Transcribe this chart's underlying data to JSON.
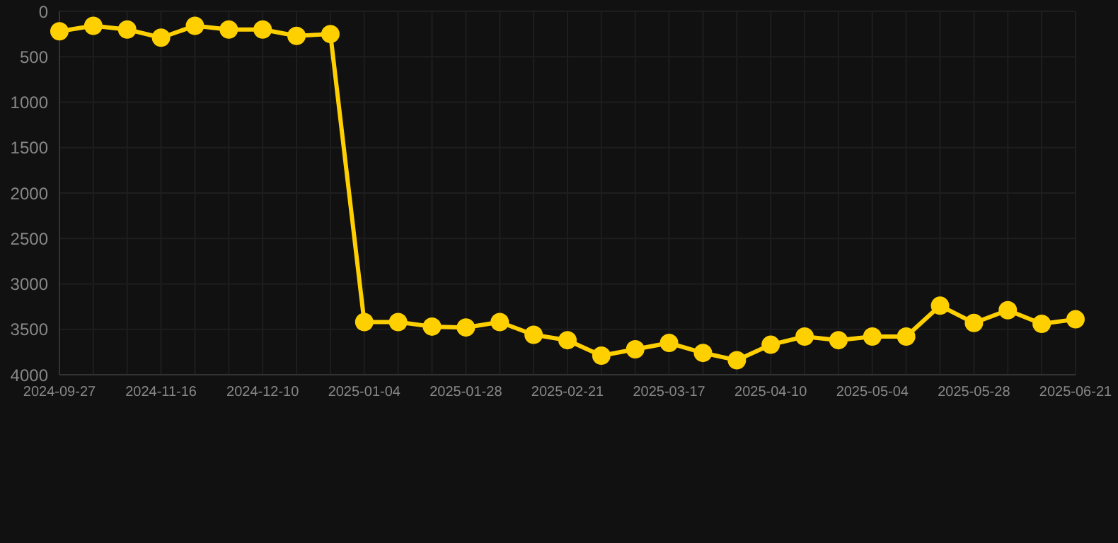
{
  "chart_data": {
    "type": "line",
    "categories": [
      "2024-09-27",
      null,
      null,
      "2024-11-16",
      null,
      null,
      "2024-12-10",
      null,
      null,
      "2025-01-04",
      null,
      null,
      "2025-01-28",
      null,
      null,
      "2025-02-21",
      null,
      null,
      "2025-03-17",
      null,
      null,
      "2025-04-10",
      null,
      null,
      "2025-05-04",
      null,
      null,
      "2025-05-28",
      null,
      null,
      "2025-06-21"
    ],
    "series": [
      {
        "color": "#ffd000",
        "values": [
          220,
          160,
          200,
          290,
          160,
          200,
          200,
          270,
          250,
          3420,
          3420,
          3470,
          3480,
          3420,
          3560,
          3620,
          3790,
          3720,
          3650,
          3760,
          3840,
          3670,
          3580,
          3620,
          3580,
          3580,
          3240,
          3430,
          3290,
          3440,
          3390
        ]
      }
    ],
    "ylim": [
      4000,
      0
    ],
    "yticks": [
      0,
      500,
      1000,
      1500,
      2000,
      2500,
      3000,
      3500,
      4000
    ],
    "grid": true,
    "marker": "circle",
    "line_style": "solid"
  }
}
